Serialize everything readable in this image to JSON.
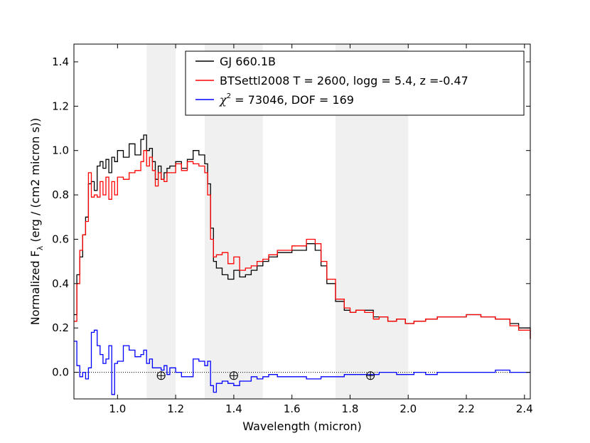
{
  "chart_data": {
    "type": "line",
    "xlabel": "Wavelength (micron)",
    "ylabel": "Normalized F",
    "ylabel_subscript": "λ",
    "ylabel_units": " (erg / (cm2 micron s))",
    "xlim": [
      0.85,
      2.42
    ],
    "ylim": [
      -0.12,
      1.48
    ],
    "xticks": [
      "1.0",
      "1.2",
      "1.4",
      "1.6",
      "1.8",
      "2.0",
      "2.2",
      "2.4"
    ],
    "yticks": [
      "0.0",
      "0.2",
      "0.4",
      "0.6",
      "0.8",
      "1.0",
      "1.2",
      "1.4"
    ],
    "xtick_values": [
      1.0,
      1.2,
      1.4,
      1.6,
      1.8,
      2.0,
      2.2,
      2.4
    ],
    "ytick_values": [
      0.0,
      0.2,
      0.4,
      0.6,
      0.8,
      1.0,
      1.2,
      1.4
    ],
    "grid": false,
    "legend_position": "top-right",
    "shaded_bands": [
      {
        "x": [
          1.1,
          1.2
        ],
        "color": "#f0f0f0"
      },
      {
        "x": [
          1.3,
          1.5
        ],
        "color": "#f0f0f0"
      },
      {
        "x": [
          1.75,
          2.0
        ],
        "color": "#f0f0f0"
      }
    ],
    "telluric_markers_x": [
      1.15,
      1.4,
      1.87
    ],
    "legend": [
      {
        "label": "GJ 660.1B",
        "color": "#000000"
      },
      {
        "label": "BTSettl2008 T = 2600, logg = 5.4, z =-0.47",
        "color": "#ff0000"
      },
      {
        "label_symbol": "χ",
        "label_superscript": "2",
        "label": " = 73046, DOF = 169",
        "color": "#0000ff"
      }
    ],
    "series": [
      {
        "name": "GJ 660.1B",
        "color": "#000000",
        "x": [
          0.85,
          0.86,
          0.87,
          0.88,
          0.89,
          0.9,
          0.91,
          0.92,
          0.93,
          0.94,
          0.95,
          0.96,
          0.97,
          0.98,
          0.99,
          1.0,
          1.02,
          1.04,
          1.06,
          1.08,
          1.09,
          1.1,
          1.11,
          1.12,
          1.13,
          1.14,
          1.15,
          1.16,
          1.17,
          1.18,
          1.2,
          1.22,
          1.24,
          1.26,
          1.28,
          1.3,
          1.31,
          1.32,
          1.33,
          1.34,
          1.36,
          1.38,
          1.4,
          1.42,
          1.44,
          1.46,
          1.48,
          1.5,
          1.52,
          1.55,
          1.6,
          1.65,
          1.68,
          1.7,
          1.72,
          1.75,
          1.78,
          1.8,
          1.82,
          1.85,
          1.88,
          1.9,
          1.93,
          1.96,
          1.99,
          2.02,
          2.06,
          2.1,
          2.15,
          2.2,
          2.25,
          2.3,
          2.35,
          2.38,
          2.42
        ],
        "y": [
          0.26,
          0.44,
          0.52,
          0.62,
          0.7,
          0.85,
          0.86,
          0.82,
          0.93,
          0.95,
          0.92,
          0.96,
          0.9,
          0.97,
          0.95,
          1.0,
          0.97,
          1.03,
          0.98,
          1.05,
          1.07,
          1.0,
          1.01,
          0.95,
          0.87,
          0.93,
          0.87,
          0.9,
          0.92,
          0.93,
          0.95,
          0.92,
          0.96,
          1.0,
          0.98,
          0.94,
          0.85,
          0.65,
          0.5,
          0.47,
          0.44,
          0.42,
          0.46,
          0.43,
          0.44,
          0.46,
          0.48,
          0.5,
          0.52,
          0.54,
          0.55,
          0.58,
          0.55,
          0.48,
          0.4,
          0.32,
          0.28,
          0.27,
          0.28,
          0.28,
          0.25,
          0.25,
          0.23,
          0.24,
          0.22,
          0.23,
          0.24,
          0.25,
          0.25,
          0.26,
          0.25,
          0.24,
          0.22,
          0.2,
          0.15
        ]
      },
      {
        "name": "BTSettl2008 T = 2600, logg = 5.4, z =-0.47",
        "color": "#ff0000",
        "x": [
          0.85,
          0.86,
          0.87,
          0.88,
          0.89,
          0.9,
          0.91,
          0.92,
          0.93,
          0.94,
          0.95,
          0.96,
          0.97,
          0.98,
          0.99,
          1.0,
          1.02,
          1.04,
          1.06,
          1.08,
          1.09,
          1.1,
          1.11,
          1.12,
          1.13,
          1.14,
          1.15,
          1.16,
          1.17,
          1.18,
          1.2,
          1.22,
          1.24,
          1.26,
          1.28,
          1.3,
          1.31,
          1.32,
          1.33,
          1.34,
          1.36,
          1.38,
          1.4,
          1.42,
          1.44,
          1.46,
          1.48,
          1.5,
          1.52,
          1.55,
          1.6,
          1.65,
          1.68,
          1.7,
          1.72,
          1.75,
          1.78,
          1.8,
          1.82,
          1.85,
          1.88,
          1.9,
          1.93,
          1.96,
          1.99,
          2.02,
          2.06,
          2.1,
          2.15,
          2.2,
          2.25,
          2.3,
          2.35,
          2.38,
          2.42
        ],
        "y": [
          0.23,
          0.4,
          0.55,
          0.62,
          0.68,
          0.9,
          0.79,
          0.8,
          0.79,
          0.86,
          0.8,
          0.88,
          0.78,
          0.86,
          0.8,
          0.88,
          0.87,
          0.9,
          0.91,
          0.95,
          1.0,
          0.93,
          0.97,
          0.91,
          0.84,
          0.9,
          0.87,
          0.86,
          0.9,
          0.9,
          0.94,
          0.91,
          0.95,
          0.94,
          0.93,
          0.9,
          0.8,
          0.6,
          0.52,
          0.53,
          0.54,
          0.49,
          0.52,
          0.46,
          0.47,
          0.48,
          0.5,
          0.51,
          0.53,
          0.55,
          0.57,
          0.6,
          0.58,
          0.5,
          0.42,
          0.33,
          0.29,
          0.27,
          0.28,
          0.27,
          0.24,
          0.25,
          0.23,
          0.24,
          0.22,
          0.23,
          0.24,
          0.25,
          0.25,
          0.26,
          0.25,
          0.24,
          0.21,
          0.19,
          0.15
        ]
      },
      {
        "name": "χ2 = 73046, DOF = 169",
        "color": "#0000ff",
        "x": [
          0.85,
          0.86,
          0.87,
          0.88,
          0.89,
          0.9,
          0.91,
          0.92,
          0.93,
          0.94,
          0.95,
          0.96,
          0.97,
          0.98,
          0.99,
          1.0,
          1.02,
          1.04,
          1.06,
          1.08,
          1.09,
          1.1,
          1.11,
          1.12,
          1.13,
          1.14,
          1.15,
          1.16,
          1.17,
          1.18,
          1.2,
          1.22,
          1.24,
          1.26,
          1.28,
          1.3,
          1.31,
          1.32,
          1.33,
          1.34,
          1.36,
          1.38,
          1.4,
          1.42,
          1.44,
          1.46,
          1.48,
          1.5,
          1.52,
          1.55,
          1.6,
          1.65,
          1.68,
          1.7,
          1.72,
          1.75,
          1.78,
          1.8,
          1.82,
          1.85,
          1.88,
          1.9,
          1.93,
          1.96,
          1.99,
          2.02,
          2.06,
          2.1,
          2.15,
          2.2,
          2.25,
          2.3,
          2.35,
          2.38,
          2.42
        ],
        "y": [
          0.14,
          0.03,
          -0.02,
          0.0,
          -0.03,
          0.02,
          0.18,
          0.19,
          0.12,
          0.08,
          0.04,
          0.06,
          0.12,
          -0.1,
          0.04,
          0.05,
          0.12,
          0.1,
          0.07,
          0.08,
          0.1,
          0.04,
          0.06,
          0.02,
          0.02,
          0.02,
          0.01,
          0.03,
          -0.01,
          0.02,
          0.0,
          -0.02,
          -0.02,
          0.06,
          0.05,
          0.03,
          0.05,
          -0.06,
          -0.09,
          -0.05,
          -0.04,
          -0.05,
          -0.06,
          -0.04,
          -0.04,
          -0.02,
          -0.03,
          -0.02,
          -0.01,
          -0.02,
          -0.02,
          -0.03,
          -0.03,
          -0.02,
          -0.02,
          -0.02,
          -0.01,
          -0.01,
          -0.01,
          -0.01,
          -0.01,
          0.0,
          0.0,
          -0.01,
          -0.01,
          0.0,
          -0.01,
          0.0,
          0.0,
          0.0,
          0.0,
          0.01,
          0.0,
          0.0,
          0.0
        ]
      }
    ]
  }
}
